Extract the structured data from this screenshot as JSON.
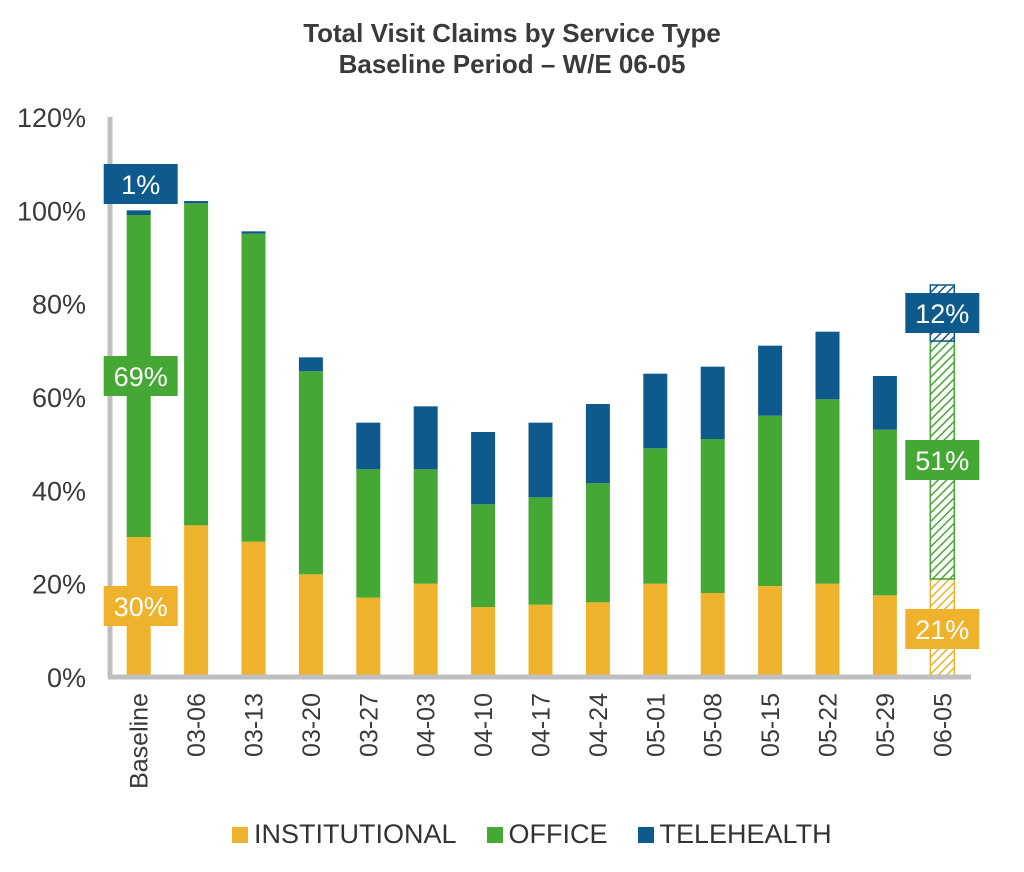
{
  "title": "Total Visit Claims by Service Type",
  "subtitle": "Baseline Period – W/E 06-05",
  "colors": {
    "institutional": "#eeb22d",
    "office": "#45a834",
    "telehealth": "#0f5a8c",
    "axis": "#bfbfbf",
    "text": "#3a3a3a"
  },
  "legend": [
    {
      "label": "INSTITUTIONAL",
      "color": "#eeb22d"
    },
    {
      "label": "OFFICE",
      "color": "#45a834"
    },
    {
      "label": "TELEHEALTH",
      "color": "#0f5a8c"
    }
  ],
  "chart_data": {
    "type": "bar",
    "stacked": true,
    "categories": [
      "Baseline",
      "03-06",
      "03-13",
      "03-20",
      "03-27",
      "04-03",
      "04-10",
      "04-17",
      "04-24",
      "05-01",
      "05-08",
      "05-15",
      "05-22",
      "05-29",
      "06-05"
    ],
    "series": [
      {
        "name": "INSTITUTIONAL",
        "color": "#eeb22d",
        "values": [
          30,
          32.5,
          29,
          22,
          17,
          20,
          15,
          15.5,
          16,
          20,
          18,
          19.5,
          20,
          17.5,
          21
        ]
      },
      {
        "name": "OFFICE",
        "color": "#45a834",
        "values": [
          69,
          69,
          66,
          43.5,
          27.5,
          24.5,
          22,
          23,
          25.5,
          29,
          33,
          36.5,
          39.5,
          35.5,
          51
        ]
      },
      {
        "name": "TELEHEALTH",
        "color": "#0f5a8c",
        "values": [
          1,
          0.5,
          0.5,
          3,
          10,
          13.5,
          15.5,
          16,
          17,
          16,
          15.5,
          15,
          14.5,
          11.5,
          12
        ]
      }
    ],
    "projected_category": "06-05",
    "ylim": [
      0,
      120
    ],
    "yticks": [
      "0%",
      "20%",
      "40%",
      "60%",
      "80%",
      "100%",
      "120%"
    ],
    "ytick_values": [
      0,
      20,
      40,
      60,
      80,
      100,
      120
    ],
    "data_labels": [
      {
        "category": "Baseline",
        "series": "INSTITUTIONAL",
        "text": "30%"
      },
      {
        "category": "Baseline",
        "series": "OFFICE",
        "text": "69%"
      },
      {
        "category": "Baseline",
        "series": "TELEHEALTH",
        "text": "1%"
      },
      {
        "category": "06-05",
        "series": "INSTITUTIONAL",
        "text": "21%"
      },
      {
        "category": "06-05",
        "series": "OFFICE",
        "text": "51%"
      },
      {
        "category": "06-05",
        "series": "TELEHEALTH",
        "text": "12%"
      }
    ],
    "grid": false,
    "legend_position": "bottom"
  }
}
